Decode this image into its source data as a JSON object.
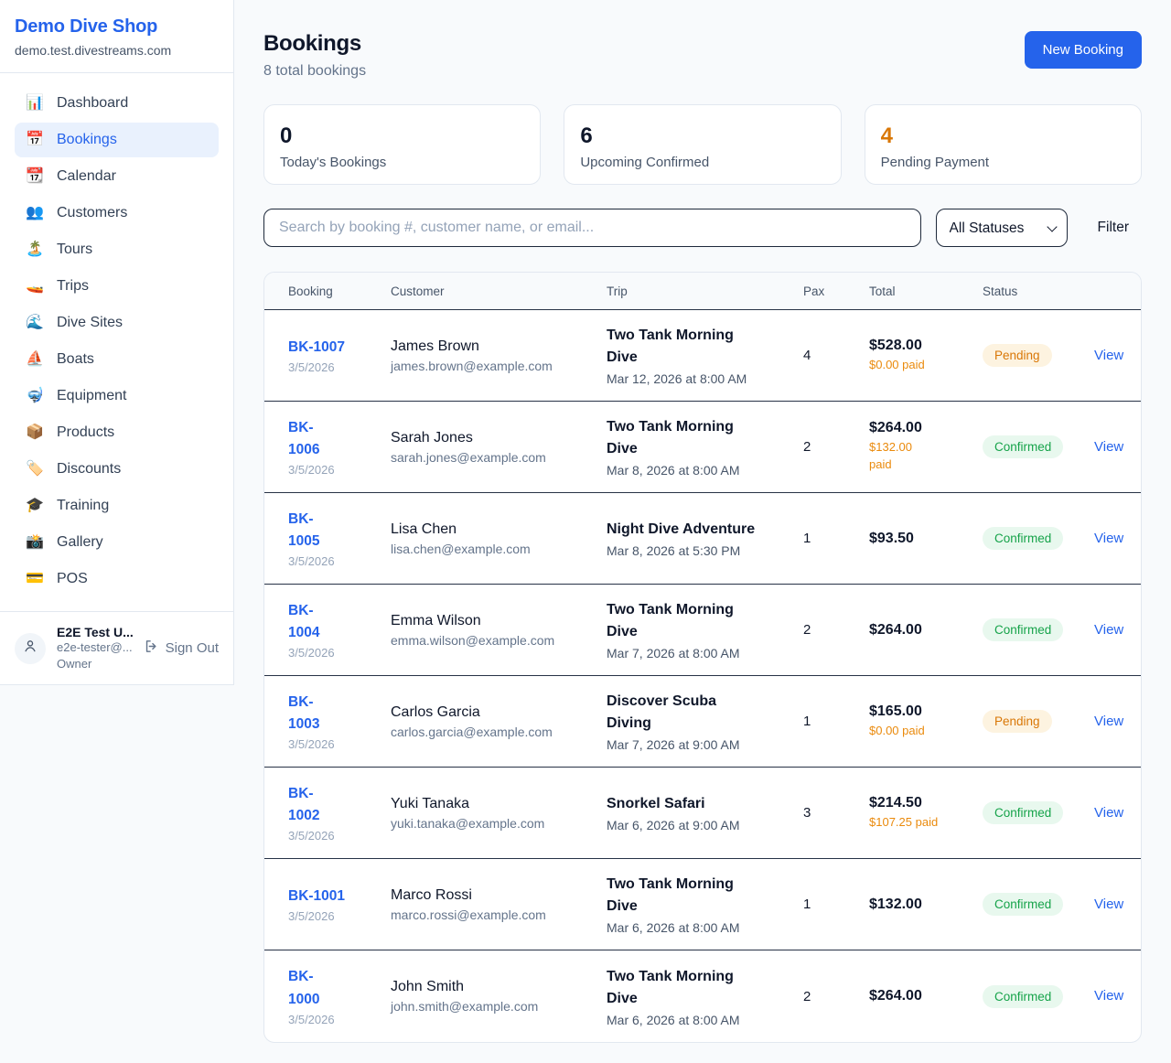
{
  "colors": {
    "accent": "#2563eb",
    "pending_text": "#d97706",
    "pending_bg": "#fdf3e0",
    "confirmed_text": "#16a34a",
    "confirmed_bg": "#e8f8ee",
    "paid_orange": "#ea8a0c",
    "page_bg": "#f8fafc"
  },
  "sidebar": {
    "brand": {
      "name": "Demo Dive Shop",
      "domain": "demo.test.divestreams.com"
    },
    "nav": [
      {
        "label": "Dashboard",
        "icon": "bar-chart-icon",
        "glyph": "📊",
        "active": false
      },
      {
        "label": "Bookings",
        "icon": "calendar-date-icon",
        "glyph": "📅",
        "active": true
      },
      {
        "label": "Calendar",
        "icon": "tearoff-calendar-icon",
        "glyph": "📆",
        "active": false
      },
      {
        "label": "Customers",
        "icon": "people-icon",
        "glyph": "👥",
        "active": false
      },
      {
        "label": "Tours",
        "icon": "island-icon",
        "glyph": "🏝️",
        "active": false
      },
      {
        "label": "Trips",
        "icon": "speedboat-icon",
        "glyph": "🚤",
        "active": false
      },
      {
        "label": "Dive Sites",
        "icon": "wave-icon",
        "glyph": "🌊",
        "active": false
      },
      {
        "label": "Boats",
        "icon": "sailboat-icon",
        "glyph": "⛵",
        "active": false
      },
      {
        "label": "Equipment",
        "icon": "diving-mask-icon",
        "glyph": "🤿",
        "active": false
      },
      {
        "label": "Products",
        "icon": "package-icon",
        "glyph": "📦",
        "active": false
      },
      {
        "label": "Discounts",
        "icon": "tag-icon",
        "glyph": "🏷️",
        "active": false
      },
      {
        "label": "Training",
        "icon": "graduation-cap-icon",
        "glyph": "🎓",
        "active": false
      },
      {
        "label": "Gallery",
        "icon": "camera-flash-icon",
        "glyph": "📸",
        "active": false
      },
      {
        "label": "POS",
        "icon": "credit-card-icon",
        "glyph": "💳",
        "active": false
      }
    ],
    "user": {
      "name": "E2E Test U...",
      "email": "e2e-tester@...",
      "role": "Owner",
      "sign_out_label": "Sign Out"
    }
  },
  "header": {
    "title": "Bookings",
    "subtitle": "8 total bookings",
    "new_booking_label": "New Booking"
  },
  "stats": [
    {
      "value": "0",
      "label": "Today's Bookings",
      "highlight": false
    },
    {
      "value": "6",
      "label": "Upcoming Confirmed",
      "highlight": false
    },
    {
      "value": "4",
      "label": "Pending Payment",
      "highlight": true
    }
  ],
  "filters": {
    "search_placeholder": "Search by booking #, customer name, or email...",
    "status_selected": "All Statuses",
    "filter_label": "Filter"
  },
  "table": {
    "columns": [
      "Booking",
      "Customer",
      "Trip",
      "Pax",
      "Total",
      "Status",
      ""
    ],
    "rows": [
      {
        "id": "BK-1007",
        "id_lines": [
          "BK-1007"
        ],
        "date": "3/5/2026",
        "customer": "James Brown",
        "email": "james.brown@example.com",
        "trip": "Two Tank Morning Dive",
        "trip_lines": [
          "Two Tank Morning",
          "Dive"
        ],
        "trip_time": "Mar 12, 2026 at 8:00 AM",
        "pax": "4",
        "total": "$528.00",
        "paid": "$0.00 paid",
        "paid_lines": [
          "$0.00 paid"
        ],
        "status": "Pending",
        "action": "View"
      },
      {
        "id": "BK-1006",
        "id_lines": [
          "BK-",
          "1006"
        ],
        "date": "3/5/2026",
        "customer": "Sarah Jones",
        "email": "sarah.jones@example.com",
        "trip": "Two Tank Morning Dive",
        "trip_lines": [
          "Two Tank Morning",
          "Dive"
        ],
        "trip_time": "Mar 8, 2026 at 8:00 AM",
        "pax": "2",
        "total": "$264.00",
        "paid": "$132.00 paid",
        "paid_lines": [
          "$132.00",
          "paid"
        ],
        "status": "Confirmed",
        "action": "View"
      },
      {
        "id": "BK-1005",
        "id_lines": [
          "BK-",
          "1005"
        ],
        "date": "3/5/2026",
        "customer": "Lisa Chen",
        "email": "lisa.chen@example.com",
        "trip": "Night Dive Adventure",
        "trip_lines": [
          "Night Dive Adventure"
        ],
        "trip_time": "Mar 8, 2026 at 5:30 PM",
        "pax": "1",
        "total": "$93.50",
        "paid": "",
        "paid_lines": [],
        "status": "Confirmed",
        "action": "View"
      },
      {
        "id": "BK-1004",
        "id_lines": [
          "BK-",
          "1004"
        ],
        "date": "3/5/2026",
        "customer": "Emma Wilson",
        "email": "emma.wilson@example.com",
        "trip": "Two Tank Morning Dive",
        "trip_lines": [
          "Two Tank Morning",
          "Dive"
        ],
        "trip_time": "Mar 7, 2026 at 8:00 AM",
        "pax": "2",
        "total": "$264.00",
        "paid": "",
        "paid_lines": [],
        "status": "Confirmed",
        "action": "View"
      },
      {
        "id": "BK-1003",
        "id_lines": [
          "BK-",
          "1003"
        ],
        "date": "3/5/2026",
        "customer": "Carlos Garcia",
        "email": "carlos.garcia@example.com",
        "trip": "Discover Scuba Diving",
        "trip_lines": [
          "Discover Scuba",
          "Diving"
        ],
        "trip_time": "Mar 7, 2026 at 9:00 AM",
        "pax": "1",
        "total": "$165.00",
        "paid": "$0.00 paid",
        "paid_lines": [
          "$0.00 paid"
        ],
        "status": "Pending",
        "action": "View"
      },
      {
        "id": "BK-1002",
        "id_lines": [
          "BK-",
          "1002"
        ],
        "date": "3/5/2026",
        "customer": "Yuki Tanaka",
        "email": "yuki.tanaka@example.com",
        "trip": "Snorkel Safari",
        "trip_lines": [
          "Snorkel Safari"
        ],
        "trip_time": "Mar 6, 2026 at 9:00 AM",
        "pax": "3",
        "total": "$214.50",
        "paid": "$107.25 paid",
        "paid_lines": [
          "$107.25 paid"
        ],
        "status": "Confirmed",
        "action": "View"
      },
      {
        "id": "BK-1001",
        "id_lines": [
          "BK-1001"
        ],
        "date": "3/5/2026",
        "customer": "Marco Rossi",
        "email": "marco.rossi@example.com",
        "trip": "Two Tank Morning Dive",
        "trip_lines": [
          "Two Tank Morning",
          "Dive"
        ],
        "trip_time": "Mar 6, 2026 at 8:00 AM",
        "pax": "1",
        "total": "$132.00",
        "paid": "",
        "paid_lines": [],
        "status": "Confirmed",
        "action": "View"
      },
      {
        "id": "BK-1000",
        "id_lines": [
          "BK-",
          "1000"
        ],
        "date": "3/5/2026",
        "customer": "John Smith",
        "email": "john.smith@example.com",
        "trip": "Two Tank Morning Dive",
        "trip_lines": [
          "Two Tank Morning",
          "Dive"
        ],
        "trip_time": "Mar 6, 2026 at 8:00 AM",
        "pax": "2",
        "total": "$264.00",
        "paid": "",
        "paid_lines": [],
        "status": "Confirmed",
        "action": "View"
      }
    ]
  }
}
